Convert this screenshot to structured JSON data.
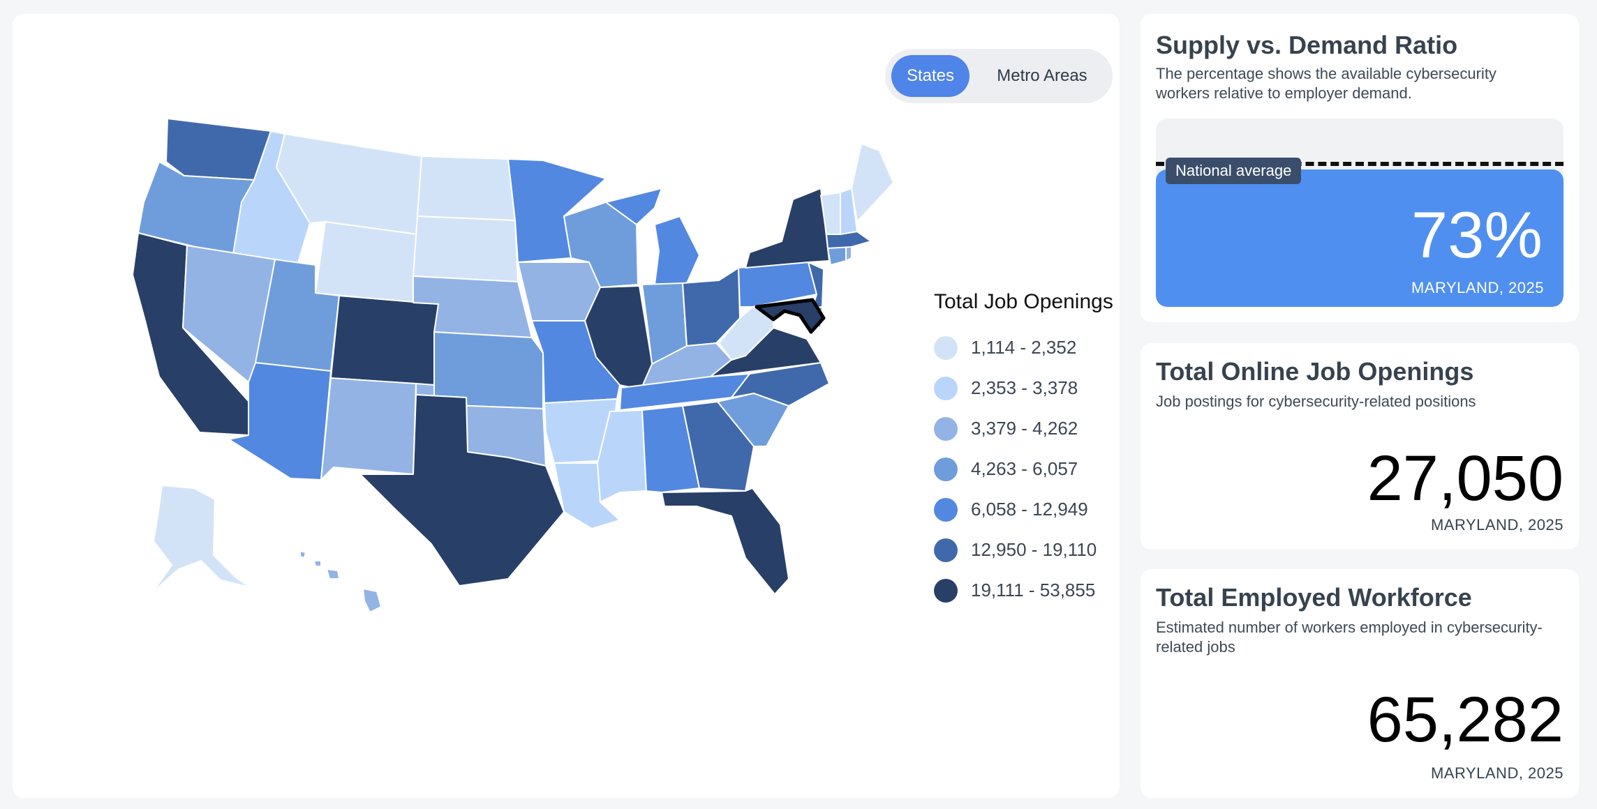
{
  "view_toggle": {
    "options": [
      "States",
      "Metro Areas"
    ],
    "selected": "States"
  },
  "map": {
    "selected_state": "Maryland",
    "legend": {
      "title": "Total Job Openings",
      "items": [
        {
          "label": "1,114 - 2,352",
          "color": "#d3e3f7"
        },
        {
          "label": "2,353 - 3,378",
          "color": "#b9d6fa"
        },
        {
          "label": "3,379 - 4,262",
          "color": "#93b3e5"
        },
        {
          "label": "4,263 - 6,057",
          "color": "#6f9ddc"
        },
        {
          "label": "6,058 - 12,949",
          "color": "#5388e0"
        },
        {
          "label": "12,950 - 19,110",
          "color": "#4069ab"
        },
        {
          "label": "19,111 - 53,855",
          "color": "#283f68"
        }
      ]
    },
    "states": [
      {
        "id": "wa",
        "name": "Washington",
        "class": 5
      },
      {
        "id": "or",
        "name": "Oregon",
        "class": 3
      },
      {
        "id": "ca",
        "name": "California",
        "class": 6
      },
      {
        "id": "id",
        "name": "Idaho",
        "class": 1
      },
      {
        "id": "nv",
        "name": "Nevada",
        "class": 2
      },
      {
        "id": "mt",
        "name": "Montana",
        "class": 0
      },
      {
        "id": "wy",
        "name": "Wyoming",
        "class": 0
      },
      {
        "id": "ut",
        "name": "Utah",
        "class": 3
      },
      {
        "id": "az",
        "name": "Arizona",
        "class": 4
      },
      {
        "id": "co",
        "name": "Colorado",
        "class": 6
      },
      {
        "id": "nm",
        "name": "New Mexico",
        "class": 2
      },
      {
        "id": "nd",
        "name": "North Dakota",
        "class": 0
      },
      {
        "id": "sd",
        "name": "South Dakota",
        "class": 0
      },
      {
        "id": "ne",
        "name": "Nebraska",
        "class": 2
      },
      {
        "id": "ks",
        "name": "Kansas",
        "class": 3
      },
      {
        "id": "ok",
        "name": "Oklahoma",
        "class": 2
      },
      {
        "id": "tx",
        "name": "Texas",
        "class": 6
      },
      {
        "id": "mn",
        "name": "Minnesota",
        "class": 4
      },
      {
        "id": "ia",
        "name": "Iowa",
        "class": 2
      },
      {
        "id": "mo",
        "name": "Missouri",
        "class": 4
      },
      {
        "id": "ar",
        "name": "Arkansas",
        "class": 1
      },
      {
        "id": "la",
        "name": "Louisiana",
        "class": 1
      },
      {
        "id": "wi",
        "name": "Wisconsin",
        "class": 3
      },
      {
        "id": "il",
        "name": "Illinois",
        "class": 6
      },
      {
        "id": "mi",
        "name": "Michigan",
        "class": 4
      },
      {
        "id": "in",
        "name": "Indiana",
        "class": 3
      },
      {
        "id": "oh",
        "name": "Ohio",
        "class": 5
      },
      {
        "id": "ky",
        "name": "Kentucky",
        "class": 2
      },
      {
        "id": "tn",
        "name": "Tennessee",
        "class": 4
      },
      {
        "id": "ms",
        "name": "Mississippi",
        "class": 1
      },
      {
        "id": "al",
        "name": "Alabama",
        "class": 4
      },
      {
        "id": "ga",
        "name": "Georgia",
        "class": 5
      },
      {
        "id": "fl",
        "name": "Florida",
        "class": 6
      },
      {
        "id": "sc",
        "name": "South Carolina",
        "class": 3
      },
      {
        "id": "nc",
        "name": "North Carolina",
        "class": 5
      },
      {
        "id": "va",
        "name": "Virginia",
        "class": 6
      },
      {
        "id": "wv",
        "name": "West Virginia",
        "class": 0
      },
      {
        "id": "md",
        "name": "Maryland",
        "class": 6
      },
      {
        "id": "de",
        "name": "Delaware",
        "class": 3
      },
      {
        "id": "nj",
        "name": "New Jersey",
        "class": 5
      },
      {
        "id": "pa",
        "name": "Pennsylvania",
        "class": 4
      },
      {
        "id": "ny",
        "name": "New York",
        "class": 6
      },
      {
        "id": "ct",
        "name": "Connecticut",
        "class": 3
      },
      {
        "id": "ri",
        "name": "Rhode Island",
        "class": 2
      },
      {
        "id": "ma",
        "name": "Massachusetts",
        "class": 5
      },
      {
        "id": "vt",
        "name": "Vermont",
        "class": 0
      },
      {
        "id": "nh",
        "name": "New Hampshire",
        "class": 1
      },
      {
        "id": "me",
        "name": "Maine",
        "class": 0
      },
      {
        "id": "ak",
        "name": "Alaska",
        "class": 0
      },
      {
        "id": "hi",
        "name": "Hawaii",
        "class": 2
      }
    ]
  },
  "supply_demand": {
    "title": "Supply vs. Demand Ratio",
    "description": "The percentage shows the available cybersecurity workers relative to employer demand.",
    "national_average_label": "National average",
    "value_text": "73%",
    "ratio": 0.73,
    "subtitle": "MARYLAND, 2025"
  },
  "job_openings": {
    "title": "Total Online Job Openings",
    "description": "Job postings for cybersecurity-related positions",
    "value": "27,050",
    "subtitle": "MARYLAND, 2025"
  },
  "workforce": {
    "title": "Total Employed Workforce",
    "description": "Estimated number of workers employed in cybersecurity-related jobs",
    "value": "65,282",
    "subtitle": "MARYLAND, 2025"
  }
}
